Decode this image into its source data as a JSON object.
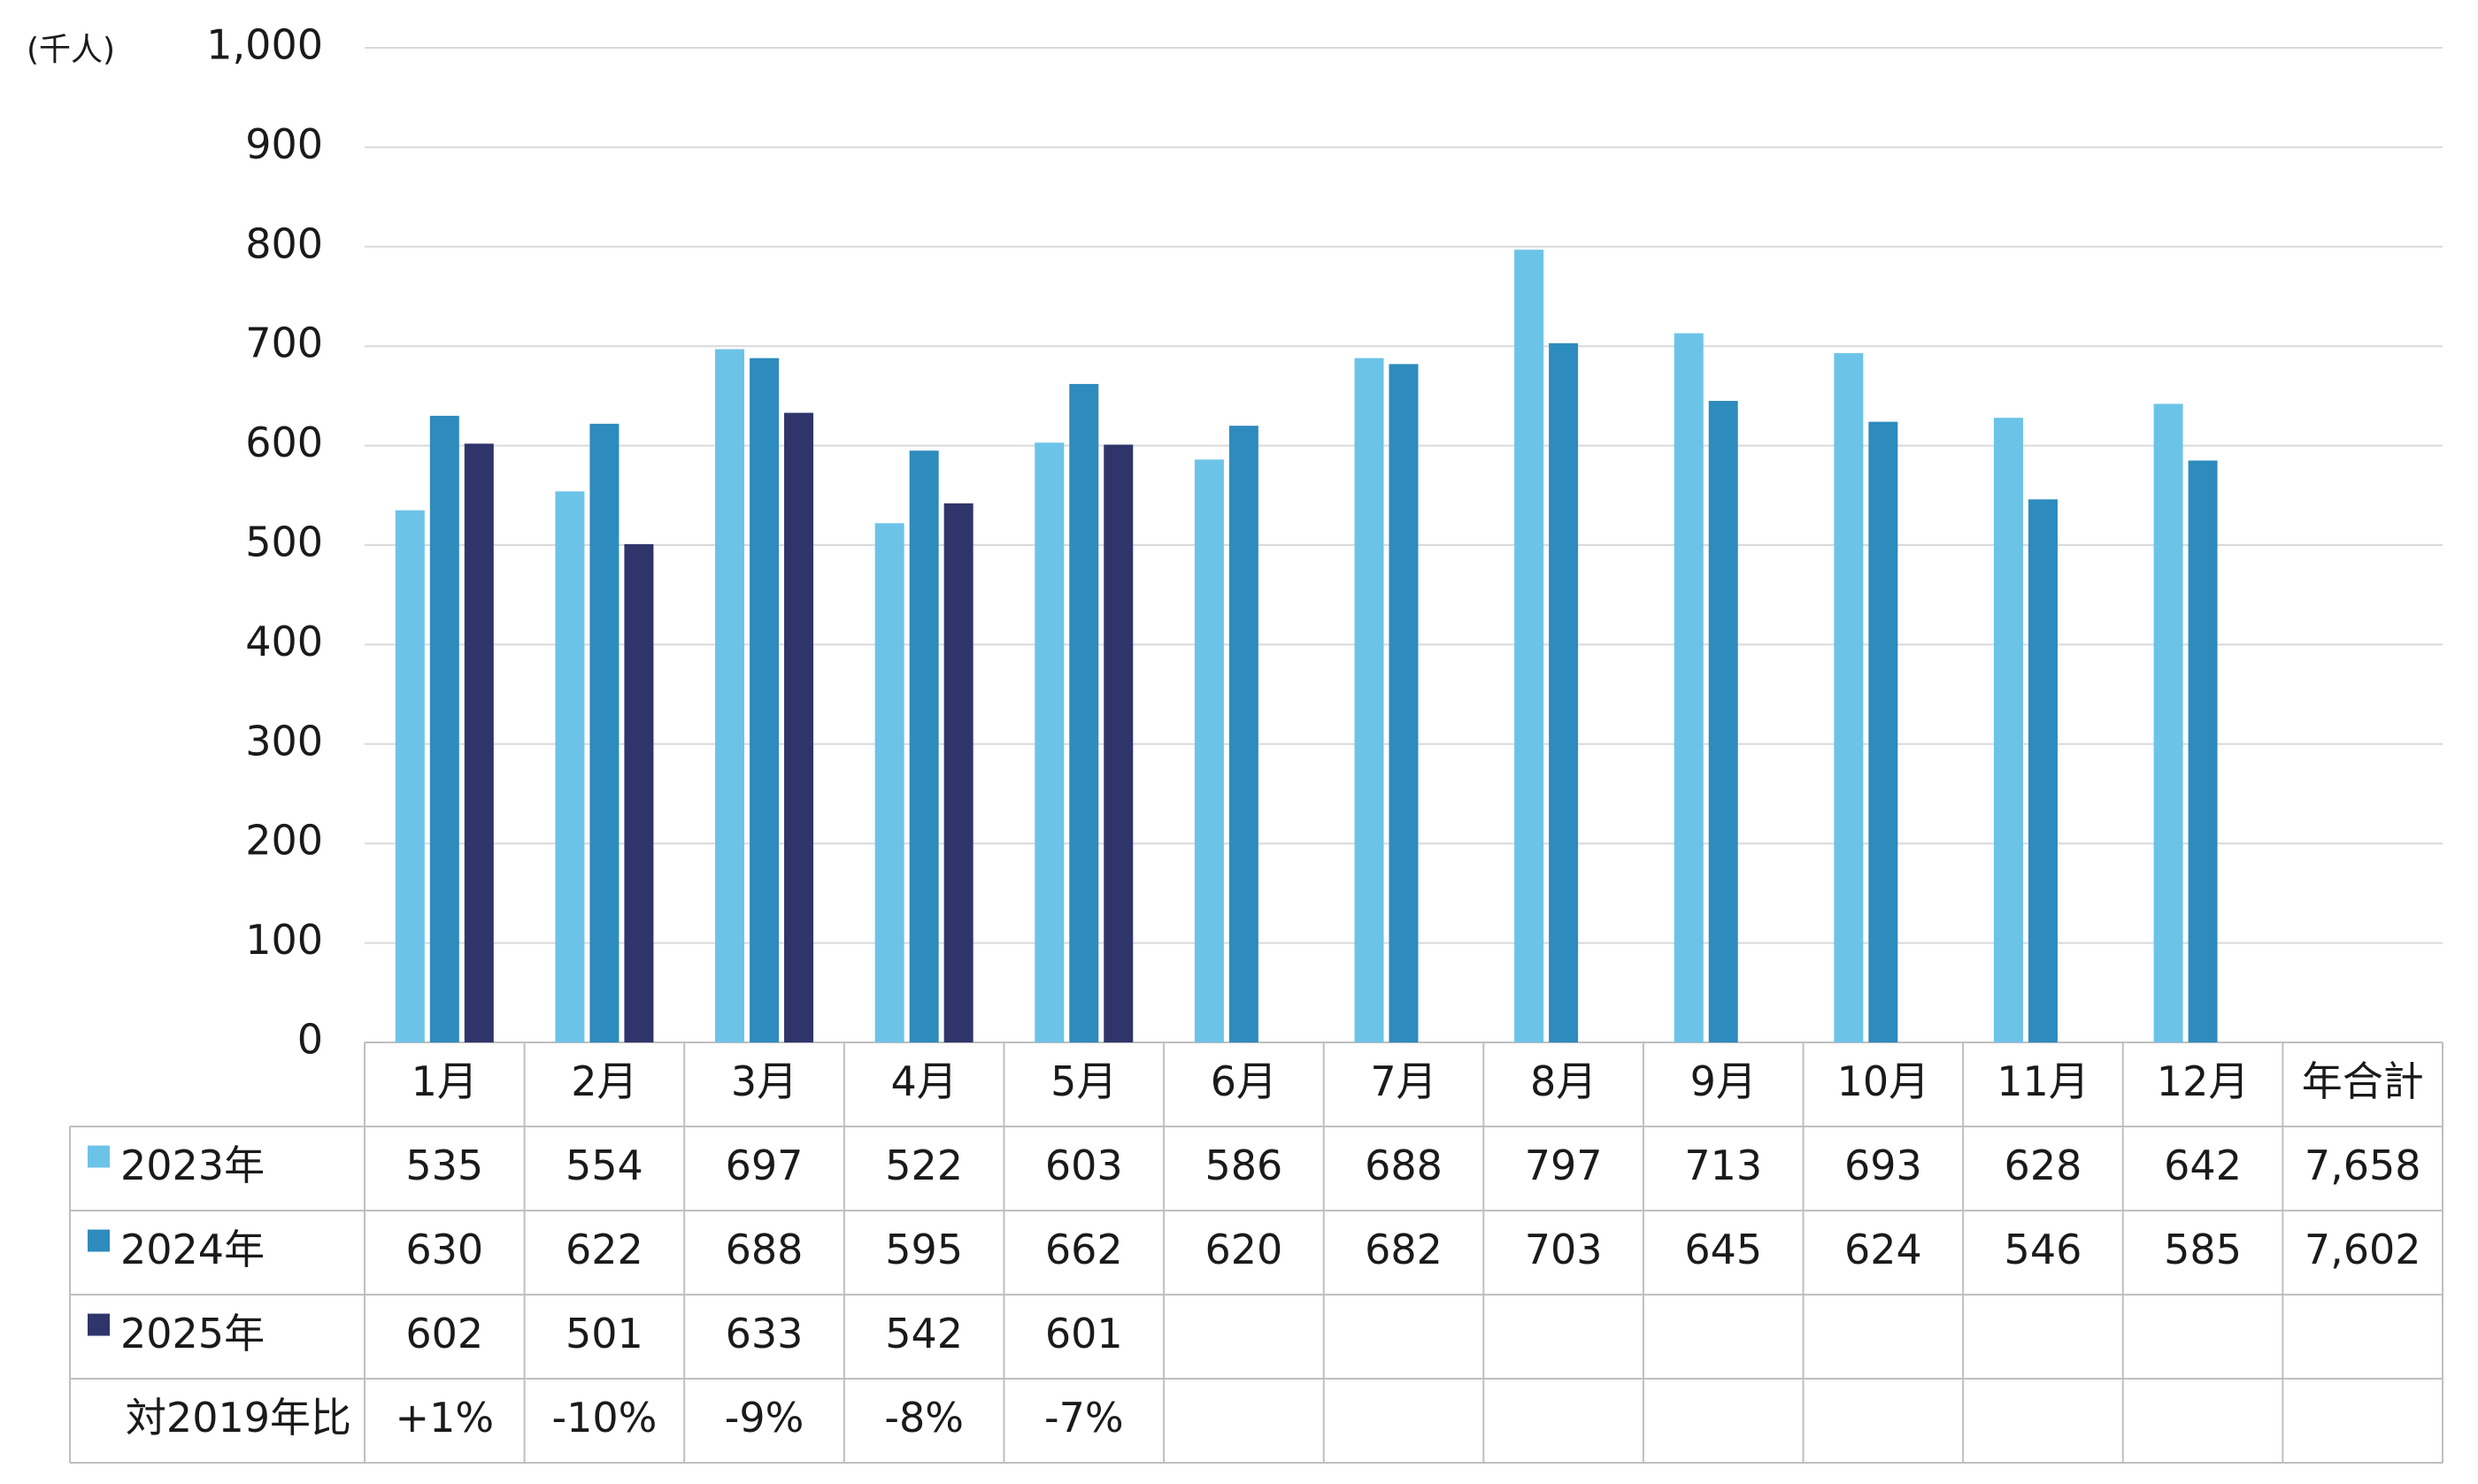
{
  "chart_data": {
    "type": "bar",
    "unit_label": "(千人)",
    "categories": [
      "1月",
      "2月",
      "3月",
      "4月",
      "5月",
      "6月",
      "7月",
      "8月",
      "9月",
      "10月",
      "11月",
      "12月"
    ],
    "total_header": "年合計",
    "series": [
      {
        "name": "2023年",
        "color": "#6cc3e8",
        "values": [
          535,
          554,
          697,
          522,
          603,
          586,
          688,
          797,
          713,
          693,
          628,
          642
        ],
        "total": {
          "value": 7658,
          "label": "7,658"
        }
      },
      {
        "name": "2024年",
        "color": "#2e8bbd",
        "values": [
          630,
          622,
          688,
          595,
          662,
          620,
          682,
          703,
          645,
          624,
          546,
          585
        ],
        "total": {
          "value": 7602,
          "label": "7,602"
        }
      },
      {
        "name": "2025年",
        "color": "#2f346b",
        "values": [
          602,
          501,
          633,
          542,
          601,
          null,
          null,
          null,
          null,
          null,
          null,
          null
        ]
      }
    ],
    "ratio_row": {
      "name": "対2019年比",
      "values": [
        1,
        -10,
        -9,
        -8,
        -7
      ],
      "value_labels": [
        "+1%",
        "-10%",
        "-9%",
        "-8%",
        "-7%"
      ]
    },
    "ylim": [
      0,
      1000
    ],
    "yticks": [
      0,
      100,
      200,
      300,
      400,
      500,
      600,
      700,
      800,
      900,
      {
        "value": 1000,
        "label": "1,000"
      }
    ],
    "grid": true
  }
}
